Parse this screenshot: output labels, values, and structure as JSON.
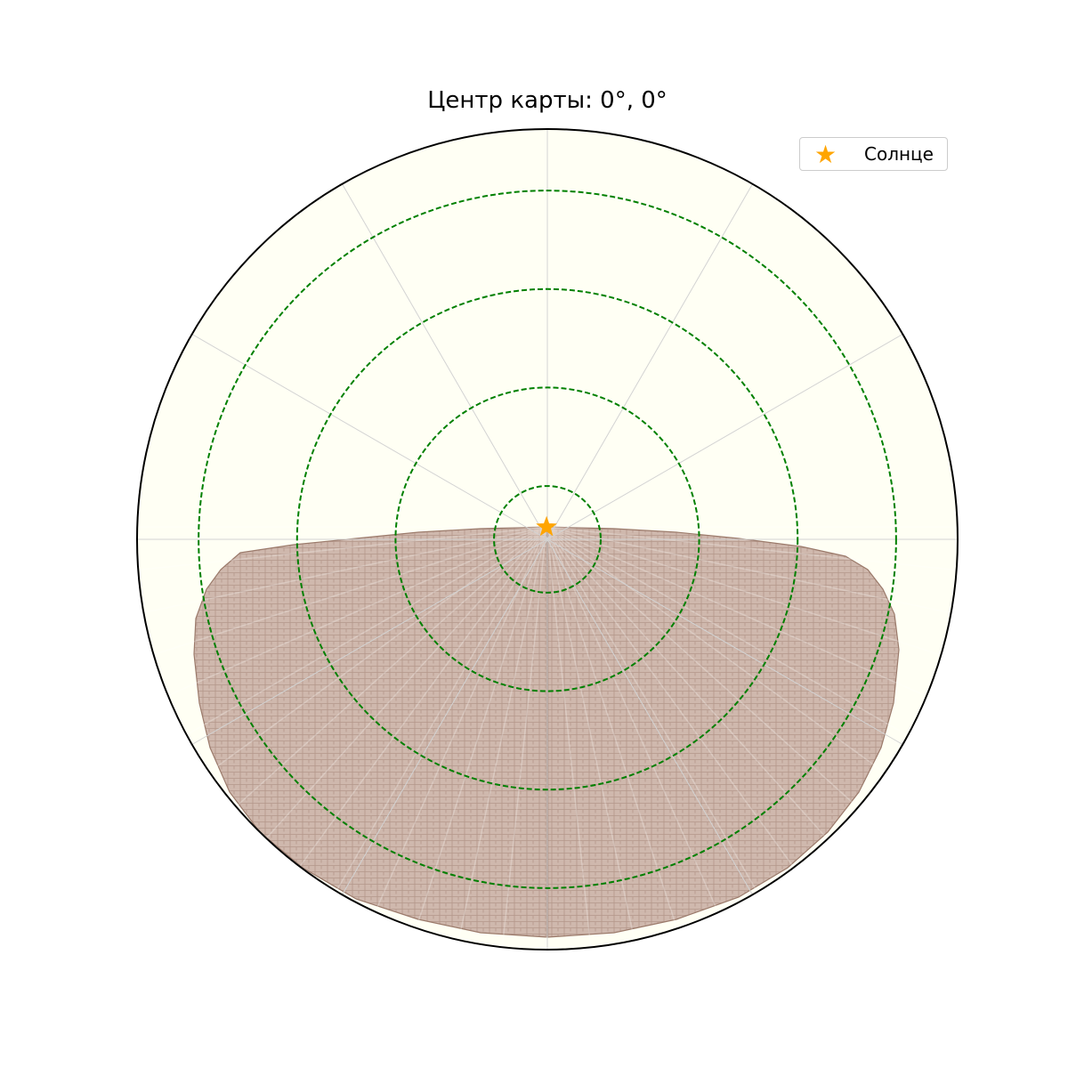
{
  "chart_data": {
    "type": "polar-map",
    "title": "Центр карты: 0°, 0°",
    "legend": {
      "entries": [
        {
          "label": "Солнце",
          "marker": "star",
          "color": "#ffa500"
        }
      ],
      "placement": "top-right"
    },
    "colors": {
      "background": "#fffff4",
      "land_fill": "#cfb8ad",
      "land_edge": "#9b7a6b",
      "circles": "#008000",
      "grid": "#d3d3d3",
      "boundary": "#000000",
      "sun": "#ffa500"
    },
    "distance_circles": [
      0.13,
      0.37,
      0.61,
      0.85
    ],
    "radial_gridlines_deg": [
      0,
      30,
      60,
      90,
      120,
      150,
      180,
      210,
      240,
      270,
      300,
      330
    ],
    "sun": {
      "label": "Солнце",
      "x": -0.002,
      "y": 0.03
    },
    "illuminated_region": "lower-hemisphere",
    "grid": true
  }
}
